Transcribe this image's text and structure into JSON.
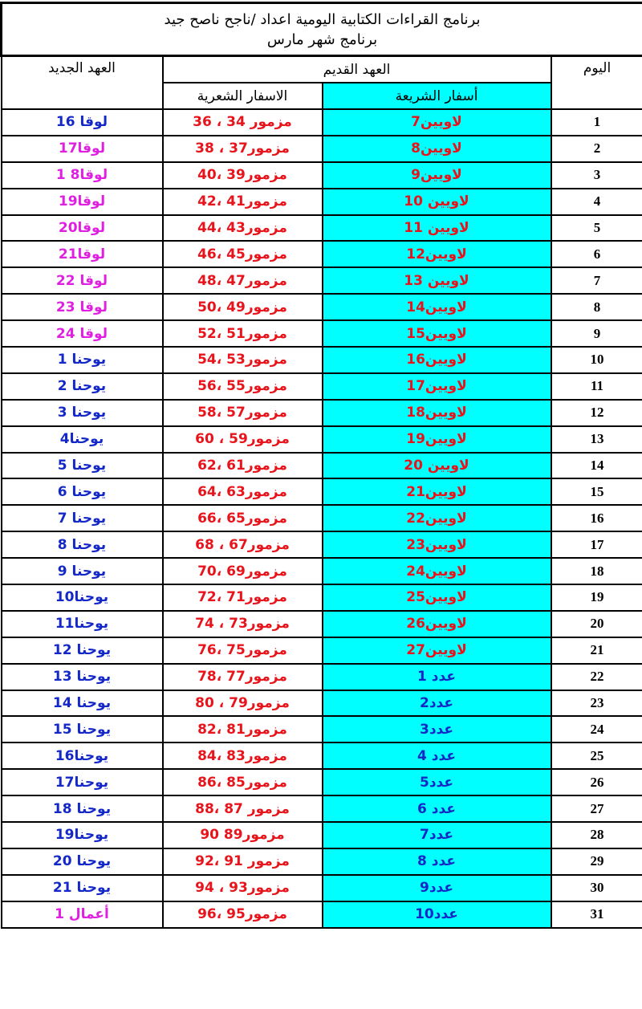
{
  "title": {
    "line1": "برنامج القراءات الكتابية اليومية اعداد /ناجح ناصح جيد",
    "line2": "برنامج شهر مارس"
  },
  "headers": {
    "day": "اليوم",
    "old_testament": "العهد القديم",
    "law": "أسفار الشريعة",
    "poetry": "الاسفار الشعرية",
    "new_testament": "العهد الجديد"
  },
  "colors": {
    "cyan": "#00ffff",
    "red": "#e8141c",
    "blue": "#1428c8",
    "magenta": "#e020e0"
  },
  "rows": [
    {
      "day": "1",
      "law": "لاويين7",
      "law_color": "red",
      "poetry": "مزمور 34 ، 36",
      "nt": "لوقا 16",
      "nt_color": "blue"
    },
    {
      "day": "2",
      "law": "لاويين8",
      "law_color": "red",
      "poetry": "مزمور37 ، 38",
      "nt": "لوقا17",
      "nt_color": "mag"
    },
    {
      "day": "3",
      "law": "لاويين9",
      "law_color": "red",
      "poetry": "مزمور39 ،40",
      "nt": "لوقا8 1",
      "nt_color": "mag"
    },
    {
      "day": "4",
      "law": "لاويين 10",
      "law_color": "red",
      "poetry": "مزمور41 ،42",
      "nt": "لوقا19",
      "nt_color": "mag"
    },
    {
      "day": "5",
      "law": "لاويين 11",
      "law_color": "red",
      "poetry": "مزمور43 ،44",
      "nt": "لوقا20",
      "nt_color": "mag"
    },
    {
      "day": "6",
      "law": "لاويين12",
      "law_color": "red",
      "poetry": "مزمور45 ،46",
      "nt": "لوقا21",
      "nt_color": "mag"
    },
    {
      "day": "7",
      "law": "لاويين 13",
      "law_color": "red",
      "poetry": "مزمور47 ،48",
      "nt": "لوقا 22",
      "nt_color": "mag"
    },
    {
      "day": "8",
      "law": "لاويين14",
      "law_color": "red",
      "poetry": "مزمور49 ،50",
      "nt": "لوقا 23",
      "nt_color": "mag"
    },
    {
      "day": "9",
      "law": "لاويين15",
      "law_color": "red",
      "poetry": "مزمور51 ،52",
      "nt": "لوقا 24",
      "nt_color": "mag"
    },
    {
      "day": "10",
      "law": "لاويين16",
      "law_color": "red",
      "poetry": "مزمور53 ،54",
      "nt": "يوحنا 1",
      "nt_color": "blue"
    },
    {
      "day": "11",
      "law": "لاويين17",
      "law_color": "red",
      "poetry": "مزمور55 ،56",
      "nt": "يوحنا 2",
      "nt_color": "blue"
    },
    {
      "day": "12",
      "law": "لاويين18",
      "law_color": "red",
      "poetry": "مزمور57 ،58",
      "nt": "يوحنا 3",
      "nt_color": "blue"
    },
    {
      "day": "13",
      "law": "لاويين19",
      "law_color": "red",
      "poetry": "مزمور59 ، 60",
      "nt": "يوحنا4",
      "nt_color": "blue"
    },
    {
      "day": "14",
      "law": "لاويين 20",
      "law_color": "red",
      "poetry": "مزمور61 ،62",
      "nt": "يوحنا 5",
      "nt_color": "blue"
    },
    {
      "day": "15",
      "law": "لاويين21",
      "law_color": "red",
      "poetry": "مزمور63 ،64",
      "nt": "يوحنا 6",
      "nt_color": "blue"
    },
    {
      "day": "16",
      "law": "لاويين22",
      "law_color": "red",
      "poetry": "مزمور65 ،66",
      "nt": "يوحنا 7",
      "nt_color": "blue"
    },
    {
      "day": "17",
      "law": "لاويين23",
      "law_color": "red",
      "poetry": "مزمور67 ، 68",
      "nt": "يوحنا 8",
      "nt_color": "blue"
    },
    {
      "day": "18",
      "law": "لاويين24",
      "law_color": "red",
      "poetry": "مزمور69 ،70",
      "nt": "يوحنا 9",
      "nt_color": "blue"
    },
    {
      "day": "19",
      "law": "لاويين25",
      "law_color": "red",
      "poetry": "مزمور71 ،72",
      "nt": "يوحنا10",
      "nt_color": "blue"
    },
    {
      "day": "20",
      "law": "لاويين26",
      "law_color": "red",
      "poetry": "مزمور73 ، 74",
      "nt": "يوحنا11",
      "nt_color": "blue"
    },
    {
      "day": "21",
      "law": "لاويين27",
      "law_color": "red",
      "poetry": "مزمور75 ،76",
      "nt": "يوحنا 12",
      "nt_color": "blue"
    },
    {
      "day": "22",
      "law": "عدد 1",
      "law_color": "blue",
      "poetry": "مزمور77 ،78",
      "nt": "يوحنا 13",
      "nt_color": "blue"
    },
    {
      "day": "23",
      "law": "عدد2",
      "law_color": "blue",
      "poetry": "مزمور79 ، 80",
      "nt": "يوحنا 14",
      "nt_color": "blue"
    },
    {
      "day": "24",
      "law": "عدد3",
      "law_color": "blue",
      "poetry": "مزمور81 ،82",
      "nt": "يوحنا 15",
      "nt_color": "blue"
    },
    {
      "day": "25",
      "law": "عدد 4",
      "law_color": "blue",
      "poetry": "مزمور83 ،84",
      "nt": "يوحنا16",
      "nt_color": "blue"
    },
    {
      "day": "26",
      "law": "عدد5",
      "law_color": "blue",
      "poetry": "مزمور85 ،86",
      "nt": "يوحنا17",
      "nt_color": "blue"
    },
    {
      "day": "27",
      "law": "عدد 6",
      "law_color": "blue",
      "poetry": "مزمور 87 ،88",
      "nt": "يوحنا 18",
      "nt_color": "blue"
    },
    {
      "day": "28",
      "law": "عدد7",
      "law_color": "blue",
      "poetry": "مزمور89 90",
      "nt": "يوحنا19",
      "nt_color": "blue"
    },
    {
      "day": "29",
      "law": "عدد 8",
      "law_color": "blue",
      "poetry": "مزمور 91 ،92",
      "nt": "يوحنا 20",
      "nt_color": "blue"
    },
    {
      "day": "30",
      "law": "عدد9",
      "law_color": "blue",
      "poetry": "مزمور93 ، 94",
      "nt": "يوحنا 21",
      "nt_color": "blue"
    },
    {
      "day": "31",
      "law": "عدد10",
      "law_color": "blue",
      "poetry": "مزمور95 ،96",
      "nt": "أعمال 1",
      "nt_color": "mag"
    }
  ]
}
